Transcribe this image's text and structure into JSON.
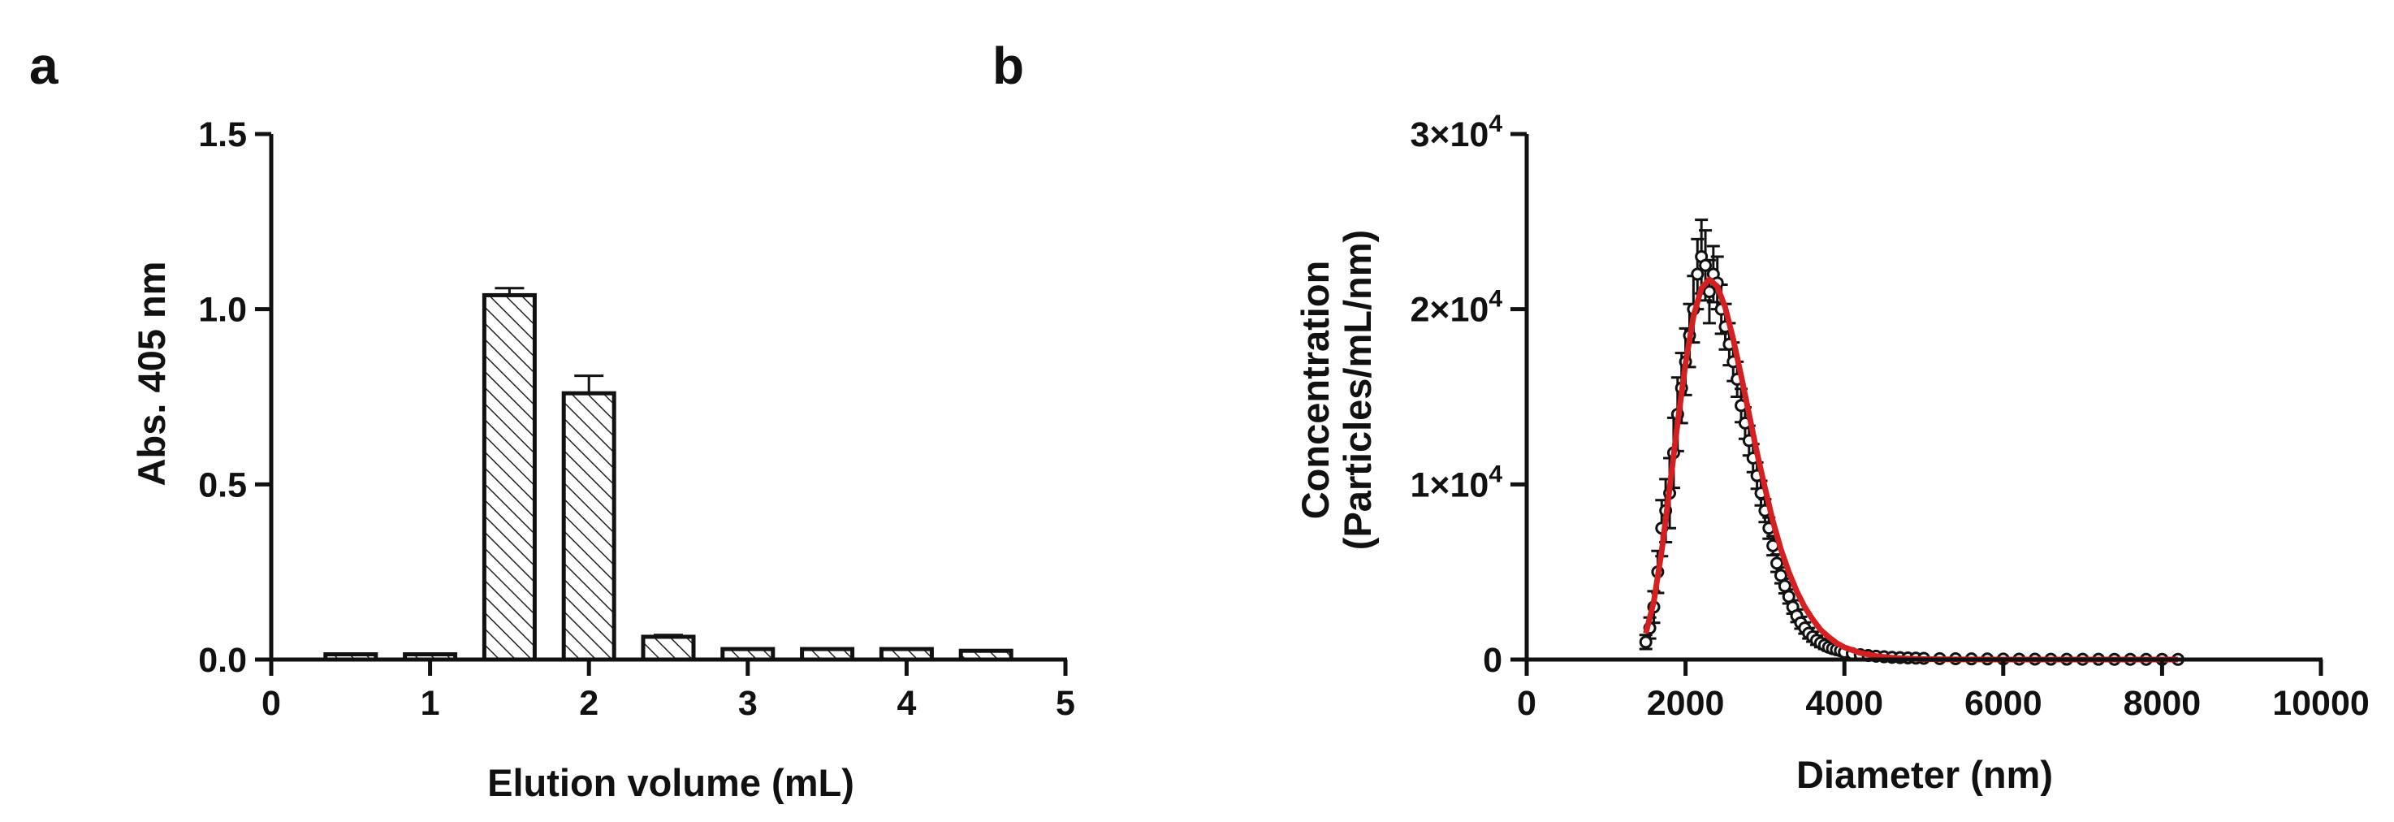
{
  "figure": {
    "panel_a_label": "a",
    "panel_b_label": "b"
  },
  "colors": {
    "axis": "#111111",
    "bar_fill": "#ffffff",
    "hatch": "#222222",
    "marker": "#111111",
    "fit_curve": "#d42020"
  },
  "chart_data": [
    {
      "type": "bar",
      "panel": "a",
      "xlabel": "Elution volume (mL)",
      "ylabel": "Abs. 405 nm",
      "xlim": [
        0,
        5
      ],
      "ylim": [
        0,
        1.5
      ],
      "xticks": [
        0,
        1,
        2,
        3,
        4,
        5
      ],
      "xtick_labels": [
        "0",
        "1",
        "2",
        "3",
        "4",
        "5"
      ],
      "yticks": [
        0,
        0.5,
        1.0,
        1.5
      ],
      "ytick_labels": [
        "0.0",
        "0.5",
        "1.0",
        "1.5"
      ],
      "grid": false,
      "hatched": true,
      "x": [
        0.5,
        1.0,
        1.5,
        2.0,
        2.5,
        3.0,
        3.5,
        4.0,
        4.5
      ],
      "values": [
        0.015,
        0.015,
        1.04,
        0.76,
        0.065,
        0.03,
        0.03,
        0.03,
        0.025
      ],
      "errors": [
        0.003,
        0.003,
        0.02,
        0.05,
        0.005,
        0.003,
        0.003,
        0.004,
        0.003
      ]
    },
    {
      "type": "scatter",
      "panel": "b",
      "xlabel": "Diameter (nm)",
      "ylabel": "Concentration (Particles/mL/nm)",
      "ylabel_lines": [
        "Concentration",
        "(Particles/mL/nm)"
      ],
      "xlim": [
        0,
        10000
      ],
      "ylim": [
        0,
        30000
      ],
      "xticks": [
        0,
        2000,
        4000,
        6000,
        8000,
        10000
      ],
      "xtick_labels": [
        "0",
        "2000",
        "4000",
        "6000",
        "8000",
        "10000"
      ],
      "yticks": [
        0,
        10000,
        20000,
        30000
      ],
      "ytick_mantissas": [
        "0",
        "1×10",
        "2×10",
        "3×10"
      ],
      "ytick_exponents": [
        "",
        "4",
        "4",
        "4"
      ],
      "grid": false,
      "x": [
        1500,
        1550,
        1600,
        1650,
        1700,
        1750,
        1800,
        1850,
        1900,
        1950,
        2000,
        2050,
        2100,
        2150,
        2200,
        2250,
        2300,
        2350,
        2400,
        2450,
        2500,
        2550,
        2600,
        2650,
        2700,
        2750,
        2800,
        2850,
        2900,
        2950,
        3000,
        3050,
        3100,
        3150,
        3200,
        3250,
        3300,
        3350,
        3400,
        3450,
        3500,
        3550,
        3600,
        3650,
        3700,
        3750,
        3800,
        3850,
        3900,
        3950,
        4000,
        4100,
        4200,
        4300,
        4400,
        4500,
        4600,
        4700,
        4800,
        4900,
        5000,
        5200,
        5400,
        5600,
        5800,
        6000,
        6200,
        6400,
        6600,
        6800,
        7000,
        7200,
        7400,
        7600,
        7800,
        8000,
        8200
      ],
      "y": [
        1000,
        1800,
        3000,
        5000,
        7500,
        8500,
        9500,
        11800,
        14000,
        15500,
        17000,
        18500,
        20000,
        22000,
        23000,
        22500,
        21000,
        22000,
        21500,
        20000,
        19000,
        18000,
        17000,
        16000,
        14500,
        13500,
        12500,
        11500,
        10500,
        9500,
        8500,
        7500,
        6500,
        5500,
        4800,
        4200,
        3600,
        3000,
        2500,
        2100,
        1800,
        1500,
        1300,
        1100,
        950,
        820,
        700,
        620,
        560,
        500,
        420,
        340,
        280,
        230,
        190,
        160,
        130,
        110,
        95,
        80,
        70,
        55,
        45,
        38,
        32,
        28,
        25,
        22,
        20,
        18,
        16,
        15,
        14,
        13,
        12,
        11,
        10
      ],
      "errors": [
        400,
        600,
        900,
        1200,
        1600,
        1800,
        2000,
        2000,
        2100,
        2000,
        1900,
        1800,
        1900,
        2000,
        2100,
        2000,
        1800,
        1600,
        1500,
        1400,
        1300,
        1200,
        1100,
        1000,
        950,
        900,
        850,
        800,
        750,
        700,
        650,
        600,
        550,
        500,
        450,
        420,
        400,
        380,
        360,
        340,
        320,
        300,
        280,
        260,
        240,
        220,
        200,
        180,
        160,
        150,
        140,
        100,
        80,
        60,
        50,
        40,
        30,
        25,
        20,
        18,
        15,
        12,
        10,
        8,
        6,
        5,
        4,
        4,
        3,
        3,
        3,
        2,
        2,
        2,
        2,
        2,
        2
      ],
      "fit": {
        "type": "line",
        "x": [
          1500,
          1600,
          1700,
          1800,
          1900,
          2000,
          2100,
          2200,
          2300,
          2400,
          2500,
          2600,
          2700,
          2800,
          2900,
          3000,
          3100,
          3200,
          3300,
          3400,
          3500,
          3600,
          3700,
          3800,
          3900,
          4000,
          4200,
          4400,
          4600,
          4800,
          5000,
          5500,
          6000,
          6500,
          7000,
          7500,
          8000,
          8200
        ],
        "y": [
          1500,
          3300,
          6200,
          9800,
          13500,
          16900,
          19600,
          21200,
          21700,
          21300,
          20100,
          18300,
          16200,
          14000,
          11800,
          9800,
          7900,
          6300,
          5000,
          3900,
          3000,
          2300,
          1700,
          1300,
          950,
          700,
          380,
          200,
          100,
          50,
          25,
          5,
          1,
          0,
          0,
          0,
          0,
          0
        ]
      }
    }
  ]
}
